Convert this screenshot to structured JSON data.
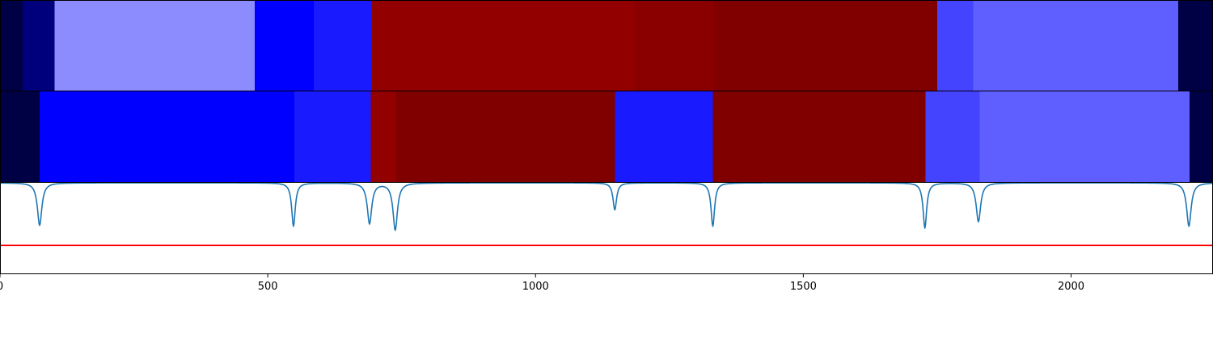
{
  "chart_data": {
    "type": "heatmap",
    "title": "",
    "xlabel": "",
    "ylabel": "",
    "xlim": [
      0,
      2265
    ],
    "x_ticks": [
      {
        "value": 0,
        "label": "0"
      },
      {
        "value": 500,
        "label": "500"
      },
      {
        "value": 1000,
        "label": "1000"
      },
      {
        "value": 1500,
        "label": "1500"
      },
      {
        "value": 2000,
        "label": "2000"
      }
    ],
    "tracks": [
      {
        "type": "segments",
        "segments": [
          {
            "start": 0,
            "end": 42,
            "color": "#000044"
          },
          {
            "start": 42,
            "end": 102,
            "color": "#00007c"
          },
          {
            "start": 102,
            "end": 476,
            "color": "#8c8cff"
          },
          {
            "start": 476,
            "end": 586,
            "color": "#0000ff"
          },
          {
            "start": 586,
            "end": 694,
            "color": "#1a1aff"
          },
          {
            "start": 694,
            "end": 1184,
            "color": "#930000"
          },
          {
            "start": 1184,
            "end": 1332,
            "color": "#8a0000"
          },
          {
            "start": 1332,
            "end": 1750,
            "color": "#800000"
          },
          {
            "start": 1750,
            "end": 1817,
            "color": "#4444ff"
          },
          {
            "start": 1817,
            "end": 2200,
            "color": "#5f5fff"
          },
          {
            "start": 2200,
            "end": 2265,
            "color": "#000044"
          }
        ]
      },
      {
        "type": "segments",
        "segments": [
          {
            "start": 0,
            "end": 74,
            "color": "#000044"
          },
          {
            "start": 74,
            "end": 550,
            "color": "#0000ff"
          },
          {
            "start": 550,
            "end": 692,
            "color": "#1a1aff"
          },
          {
            "start": 692,
            "end": 740,
            "color": "#930000"
          },
          {
            "start": 740,
            "end": 1148,
            "color": "#800000"
          },
          {
            "start": 1148,
            "end": 1331,
            "color": "#1a1aff"
          },
          {
            "start": 1331,
            "end": 1728,
            "color": "#800000"
          },
          {
            "start": 1728,
            "end": 1829,
            "color": "#4444ff"
          },
          {
            "start": 1829,
            "end": 2221,
            "color": "#5f5fff"
          },
          {
            "start": 2221,
            "end": 2265,
            "color": "#000044"
          }
        ]
      },
      {
        "type": "line",
        "color": "#1f77b4",
        "ylim": [
          -1.0,
          0.0
        ],
        "baseline": 0,
        "dips": [
          {
            "x": 74,
            "depth": -0.47,
            "width": 5
          },
          {
            "x": 548,
            "depth": -0.48,
            "width": 4
          },
          {
            "x": 690,
            "depth": -0.45,
            "width": 5
          },
          {
            "x": 738,
            "depth": -0.52,
            "width": 5
          },
          {
            "x": 1148,
            "depth": -0.3,
            "width": 4
          },
          {
            "x": 1331,
            "depth": -0.48,
            "width": 4
          },
          {
            "x": 1727,
            "depth": -0.5,
            "width": 4
          },
          {
            "x": 1827,
            "depth": -0.43,
            "width": 5
          },
          {
            "x": 2220,
            "depth": -0.48,
            "width": 5
          }
        ],
        "threshold": {
          "value": -0.69,
          "color": "#ff0000"
        }
      }
    ]
  }
}
